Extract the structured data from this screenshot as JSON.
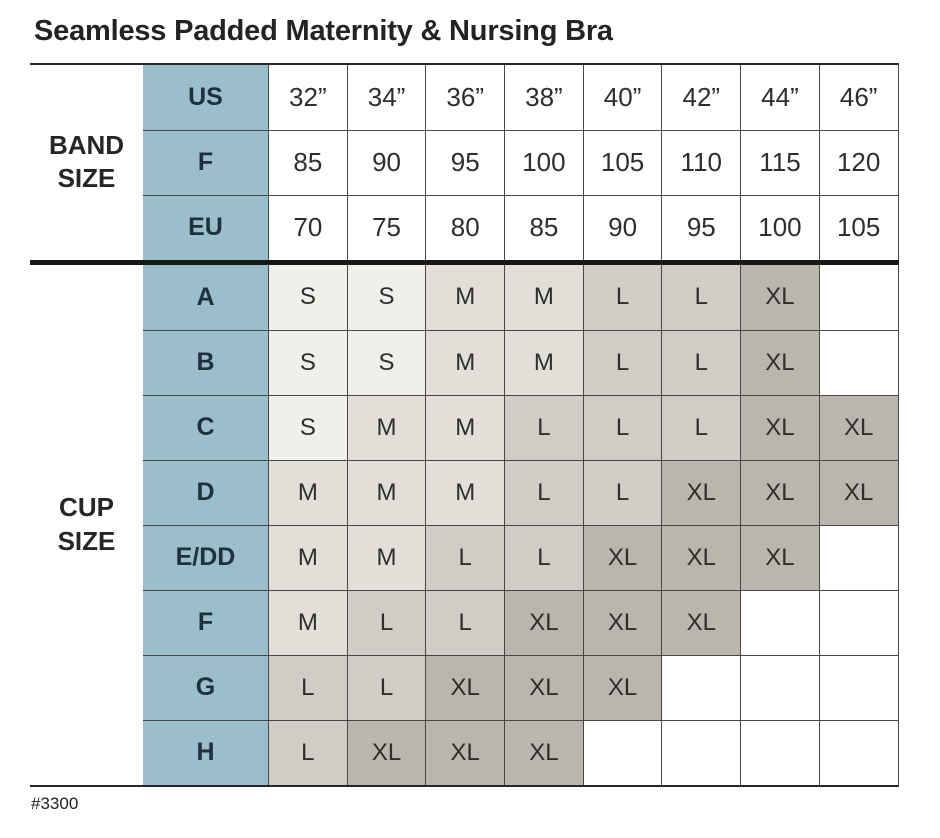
{
  "chart_data": {
    "type": "table",
    "title": "Seamless Padded Maternity & Nursing Bra",
    "item_number": "#3300",
    "band_section_label": "BAND SIZE",
    "cup_section_label": "CUP SIZE",
    "band_rows": [
      {
        "label": "US",
        "values": [
          "32”",
          "34”",
          "36”",
          "38”",
          "40”",
          "42”",
          "44”",
          "46”"
        ]
      },
      {
        "label": "F",
        "values": [
          "85",
          "90",
          "95",
          "100",
          "105",
          "110",
          "115",
          "120"
        ]
      },
      {
        "label": "EU",
        "values": [
          "70",
          "75",
          "80",
          "85",
          "90",
          "95",
          "100",
          "105"
        ]
      }
    ],
    "cup_rows": [
      {
        "label": "A",
        "values": [
          "S",
          "S",
          "M",
          "M",
          "L",
          "L",
          "XL",
          ""
        ]
      },
      {
        "label": "B",
        "values": [
          "S",
          "S",
          "M",
          "M",
          "L",
          "L",
          "XL",
          ""
        ]
      },
      {
        "label": "C",
        "values": [
          "S",
          "M",
          "M",
          "L",
          "L",
          "L",
          "XL",
          "XL"
        ]
      },
      {
        "label": "D",
        "values": [
          "M",
          "M",
          "M",
          "L",
          "L",
          "XL",
          "XL",
          "XL"
        ]
      },
      {
        "label": "E/DD",
        "values": [
          "M",
          "M",
          "L",
          "L",
          "XL",
          "XL",
          "XL",
          ""
        ]
      },
      {
        "label": "F",
        "values": [
          "M",
          "L",
          "L",
          "XL",
          "XL",
          "XL",
          "",
          ""
        ]
      },
      {
        "label": "G",
        "values": [
          "L",
          "L",
          "XL",
          "XL",
          "XL",
          "",
          "",
          ""
        ]
      },
      {
        "label": "H",
        "values": [
          "L",
          "XL",
          "XL",
          "XL",
          "",
          "",
          "",
          ""
        ]
      }
    ]
  },
  "colors": {
    "teal_header": "#9ABECC",
    "size_s": "#F1EFEC",
    "size_m": "#E2DFD9",
    "size_l": "#D1CDC6",
    "size_xl": "#BAB6AE"
  }
}
